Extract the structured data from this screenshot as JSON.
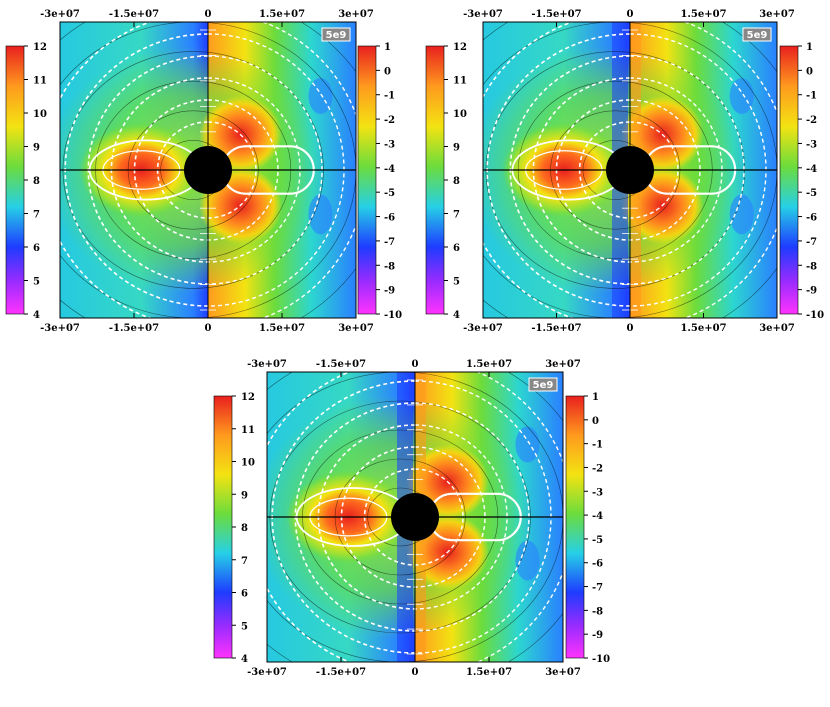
{
  "chart_data": [
    {
      "type": "heatmap",
      "panel": "top-left",
      "title": "",
      "x_ticks": [
        "-3e+07",
        "-1.5e+07",
        "0",
        "1.5e+07",
        "3e+07"
      ],
      "xlim": [
        -30000000,
        30000000
      ],
      "ylim": [
        -30000000,
        30000000
      ],
      "badge": "5e9",
      "left_colorbar": {
        "ticks": [
          "12",
          "11",
          "10",
          "9",
          "8",
          "7",
          "6",
          "5",
          "4"
        ],
        "range": [
          4,
          12
        ]
      },
      "right_colorbar": {
        "ticks": [
          "1",
          "0",
          "-1",
          "-2",
          "-3",
          "-4",
          "-5",
          "-6",
          "-7",
          "-8",
          "-9",
          "-10"
        ],
        "range": [
          -10,
          1
        ]
      },
      "central_body": "black disk",
      "overlays": [
        "white field lines with arrows",
        "black contour lines",
        "white closed loop"
      ]
    },
    {
      "type": "heatmap",
      "panel": "top-right",
      "title": "",
      "x_ticks": [
        "-3e+07",
        "-1.5e+07",
        "0",
        "1.5e+07",
        "3e+07"
      ],
      "xlim": [
        -30000000,
        30000000
      ],
      "ylim": [
        -30000000,
        30000000
      ],
      "badge": "5e9",
      "left_colorbar": {
        "ticks": [
          "12",
          "11",
          "10",
          "9",
          "8",
          "7",
          "6",
          "5",
          "4"
        ],
        "range": [
          4,
          12
        ]
      },
      "right_colorbar": {
        "ticks": [
          "1",
          "0",
          "-1",
          "-2",
          "-3",
          "-4",
          "-5",
          "-6",
          "-7",
          "-8",
          "-9",
          "-10"
        ],
        "range": [
          -10,
          1
        ]
      },
      "central_body": "black disk",
      "overlays": [
        "white field lines with arrows",
        "black contour lines",
        "white closed loop"
      ]
    },
    {
      "type": "heatmap",
      "panel": "bottom",
      "title": "",
      "x_ticks": [
        "-3e+07",
        "-1.5e+07",
        "0",
        "1.5e+07",
        "3e+07"
      ],
      "xlim": [
        -30000000,
        30000000
      ],
      "ylim": [
        -30000000,
        30000000
      ],
      "badge": "5e9",
      "left_colorbar": {
        "ticks": [
          "12",
          "11",
          "10",
          "9",
          "8",
          "7",
          "6",
          "5",
          "4"
        ],
        "range": [
          4,
          12
        ]
      },
      "right_colorbar": {
        "ticks": [
          "1",
          "0",
          "-1",
          "-2",
          "-3",
          "-4",
          "-5",
          "-6",
          "-7",
          "-8",
          "-9",
          "-10"
        ],
        "range": [
          -10,
          1
        ]
      },
      "central_body": "black disk",
      "overlays": [
        "white field lines with arrows",
        "black contour lines",
        "white closed loop"
      ]
    }
  ],
  "palette": {
    "magenta": "#ff33ff",
    "blue": "#1e3cff",
    "cyan": "#26d0e6",
    "green": "#6cdc3c",
    "yellow": "#f3e312",
    "orange": "#ff9a1e",
    "red": "#e8201e",
    "line": "#ffffff",
    "body": "#000000"
  }
}
